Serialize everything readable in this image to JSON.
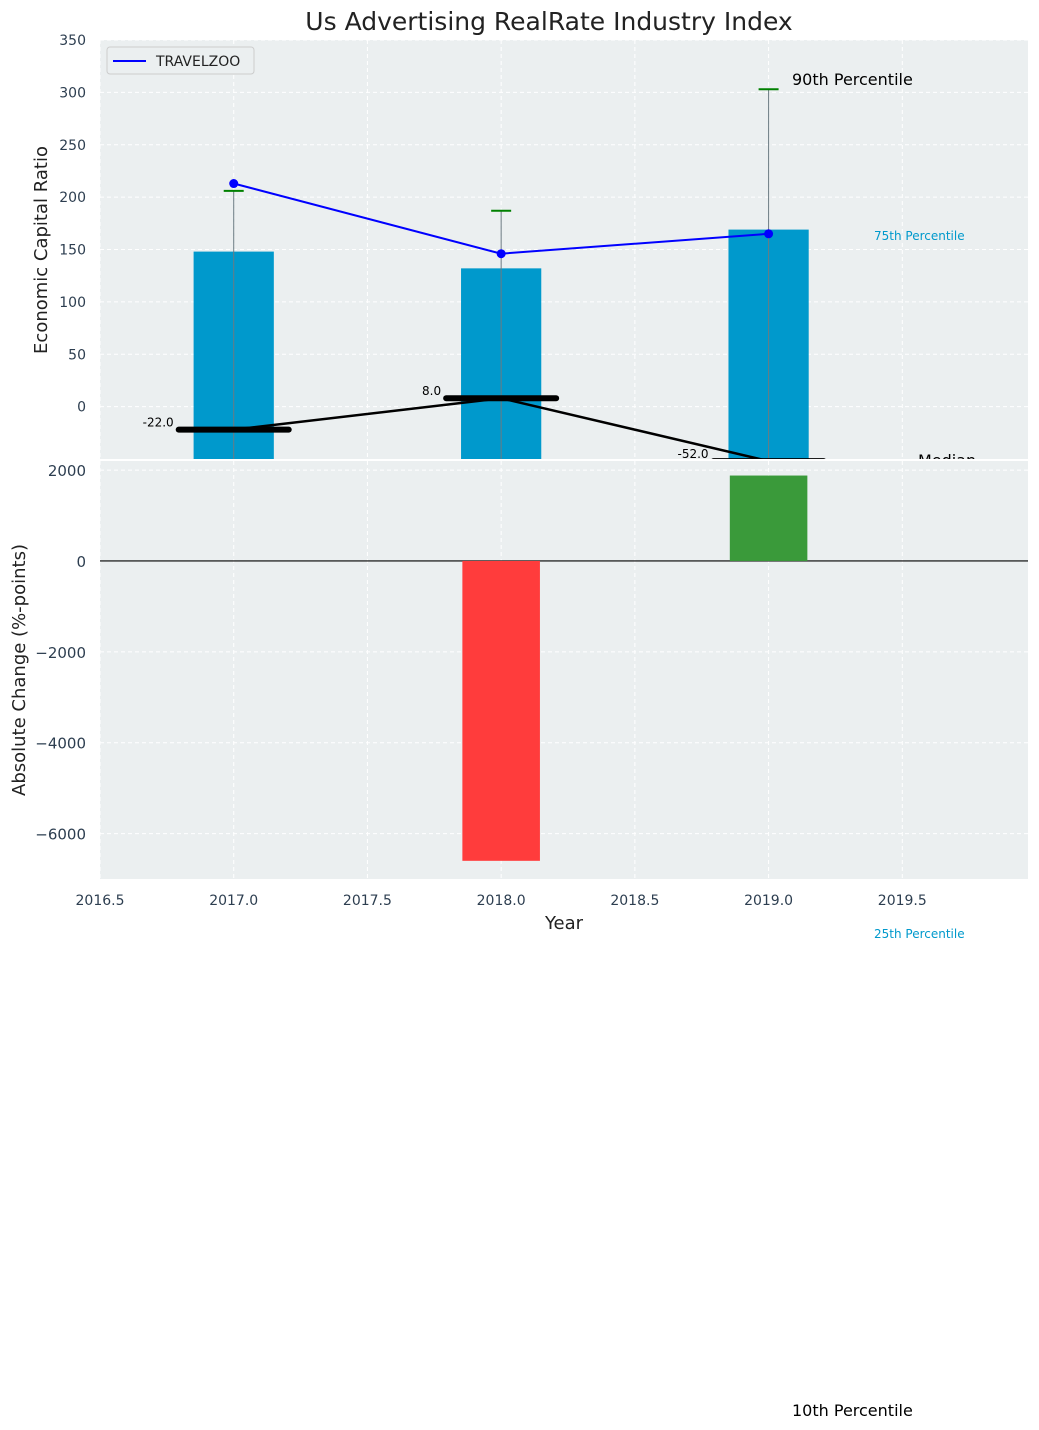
{
  "chart_data": [
    {
      "type": "bar",
      "title": "Us Advertising RealRate Industry Index",
      "xlabel": "",
      "ylabel": "Economic Capital Ratio",
      "x": [
        2017.0,
        2018.0,
        2019.0
      ],
      "xlim": [
        2016.5,
        2019.97
      ],
      "ylim": [
        -50,
        350
      ],
      "yticks": [
        0,
        50,
        100,
        150,
        200,
        250,
        300,
        350
      ],
      "grid": true,
      "legend": {
        "position": "top-left",
        "entries": [
          "TRAVELZOO"
        ]
      },
      "series": [
        {
          "name": "75th Percentile (bar)",
          "type": "bar",
          "color": "#0099cc",
          "values": [
            148,
            132,
            169
          ]
        },
        {
          "name": "TRAVELZOO",
          "type": "line",
          "color": "#0000ff",
          "values": [
            213,
            146,
            165
          ]
        },
        {
          "name": "Median",
          "type": "line",
          "color": "#000000",
          "values": [
            -22.0,
            8.0,
            -52.0
          ]
        },
        {
          "name": "90th Percentile",
          "type": "errorbar-cap",
          "color": "#008000",
          "values": [
            206,
            187,
            303
          ]
        }
      ],
      "median_labels": [
        "-22.0",
        "8.0",
        "-52.0"
      ],
      "annotations": {
        "p90": "90th Percentile",
        "p75": "75th Percentile",
        "median": "Median",
        "p25": "25th Percentile",
        "p10": "10th Percentile"
      }
    },
    {
      "type": "bar",
      "title": "",
      "xlabel": "Year",
      "ylabel": "Absolute Change (%-points)",
      "x": [
        2017.0,
        2018.0,
        2019.0
      ],
      "xticks": [
        2016.5,
        2017.0,
        2017.5,
        2018.0,
        2018.5,
        2019.0,
        2019.5
      ],
      "xtick_labels": [
        "2016.5",
        "2017.0",
        "2017.5",
        "2018.0",
        "2018.5",
        "2019.0",
        "2019.5"
      ],
      "xlim": [
        2016.5,
        2019.97
      ],
      "ylim": [
        -7000,
        2200
      ],
      "yticks": [
        2000,
        0,
        -2000,
        -4000,
        -6000
      ],
      "ytick_labels": [
        "2000",
        "0",
        "−2000",
        "−4000",
        "−6000"
      ],
      "grid": true,
      "series": [
        {
          "name": "Absolute Change",
          "values": [
            0,
            -6600,
            1880
          ]
        }
      ],
      "colors": {
        "positive": "#3a9a3a",
        "negative": "#ff3c3c"
      }
    }
  ]
}
